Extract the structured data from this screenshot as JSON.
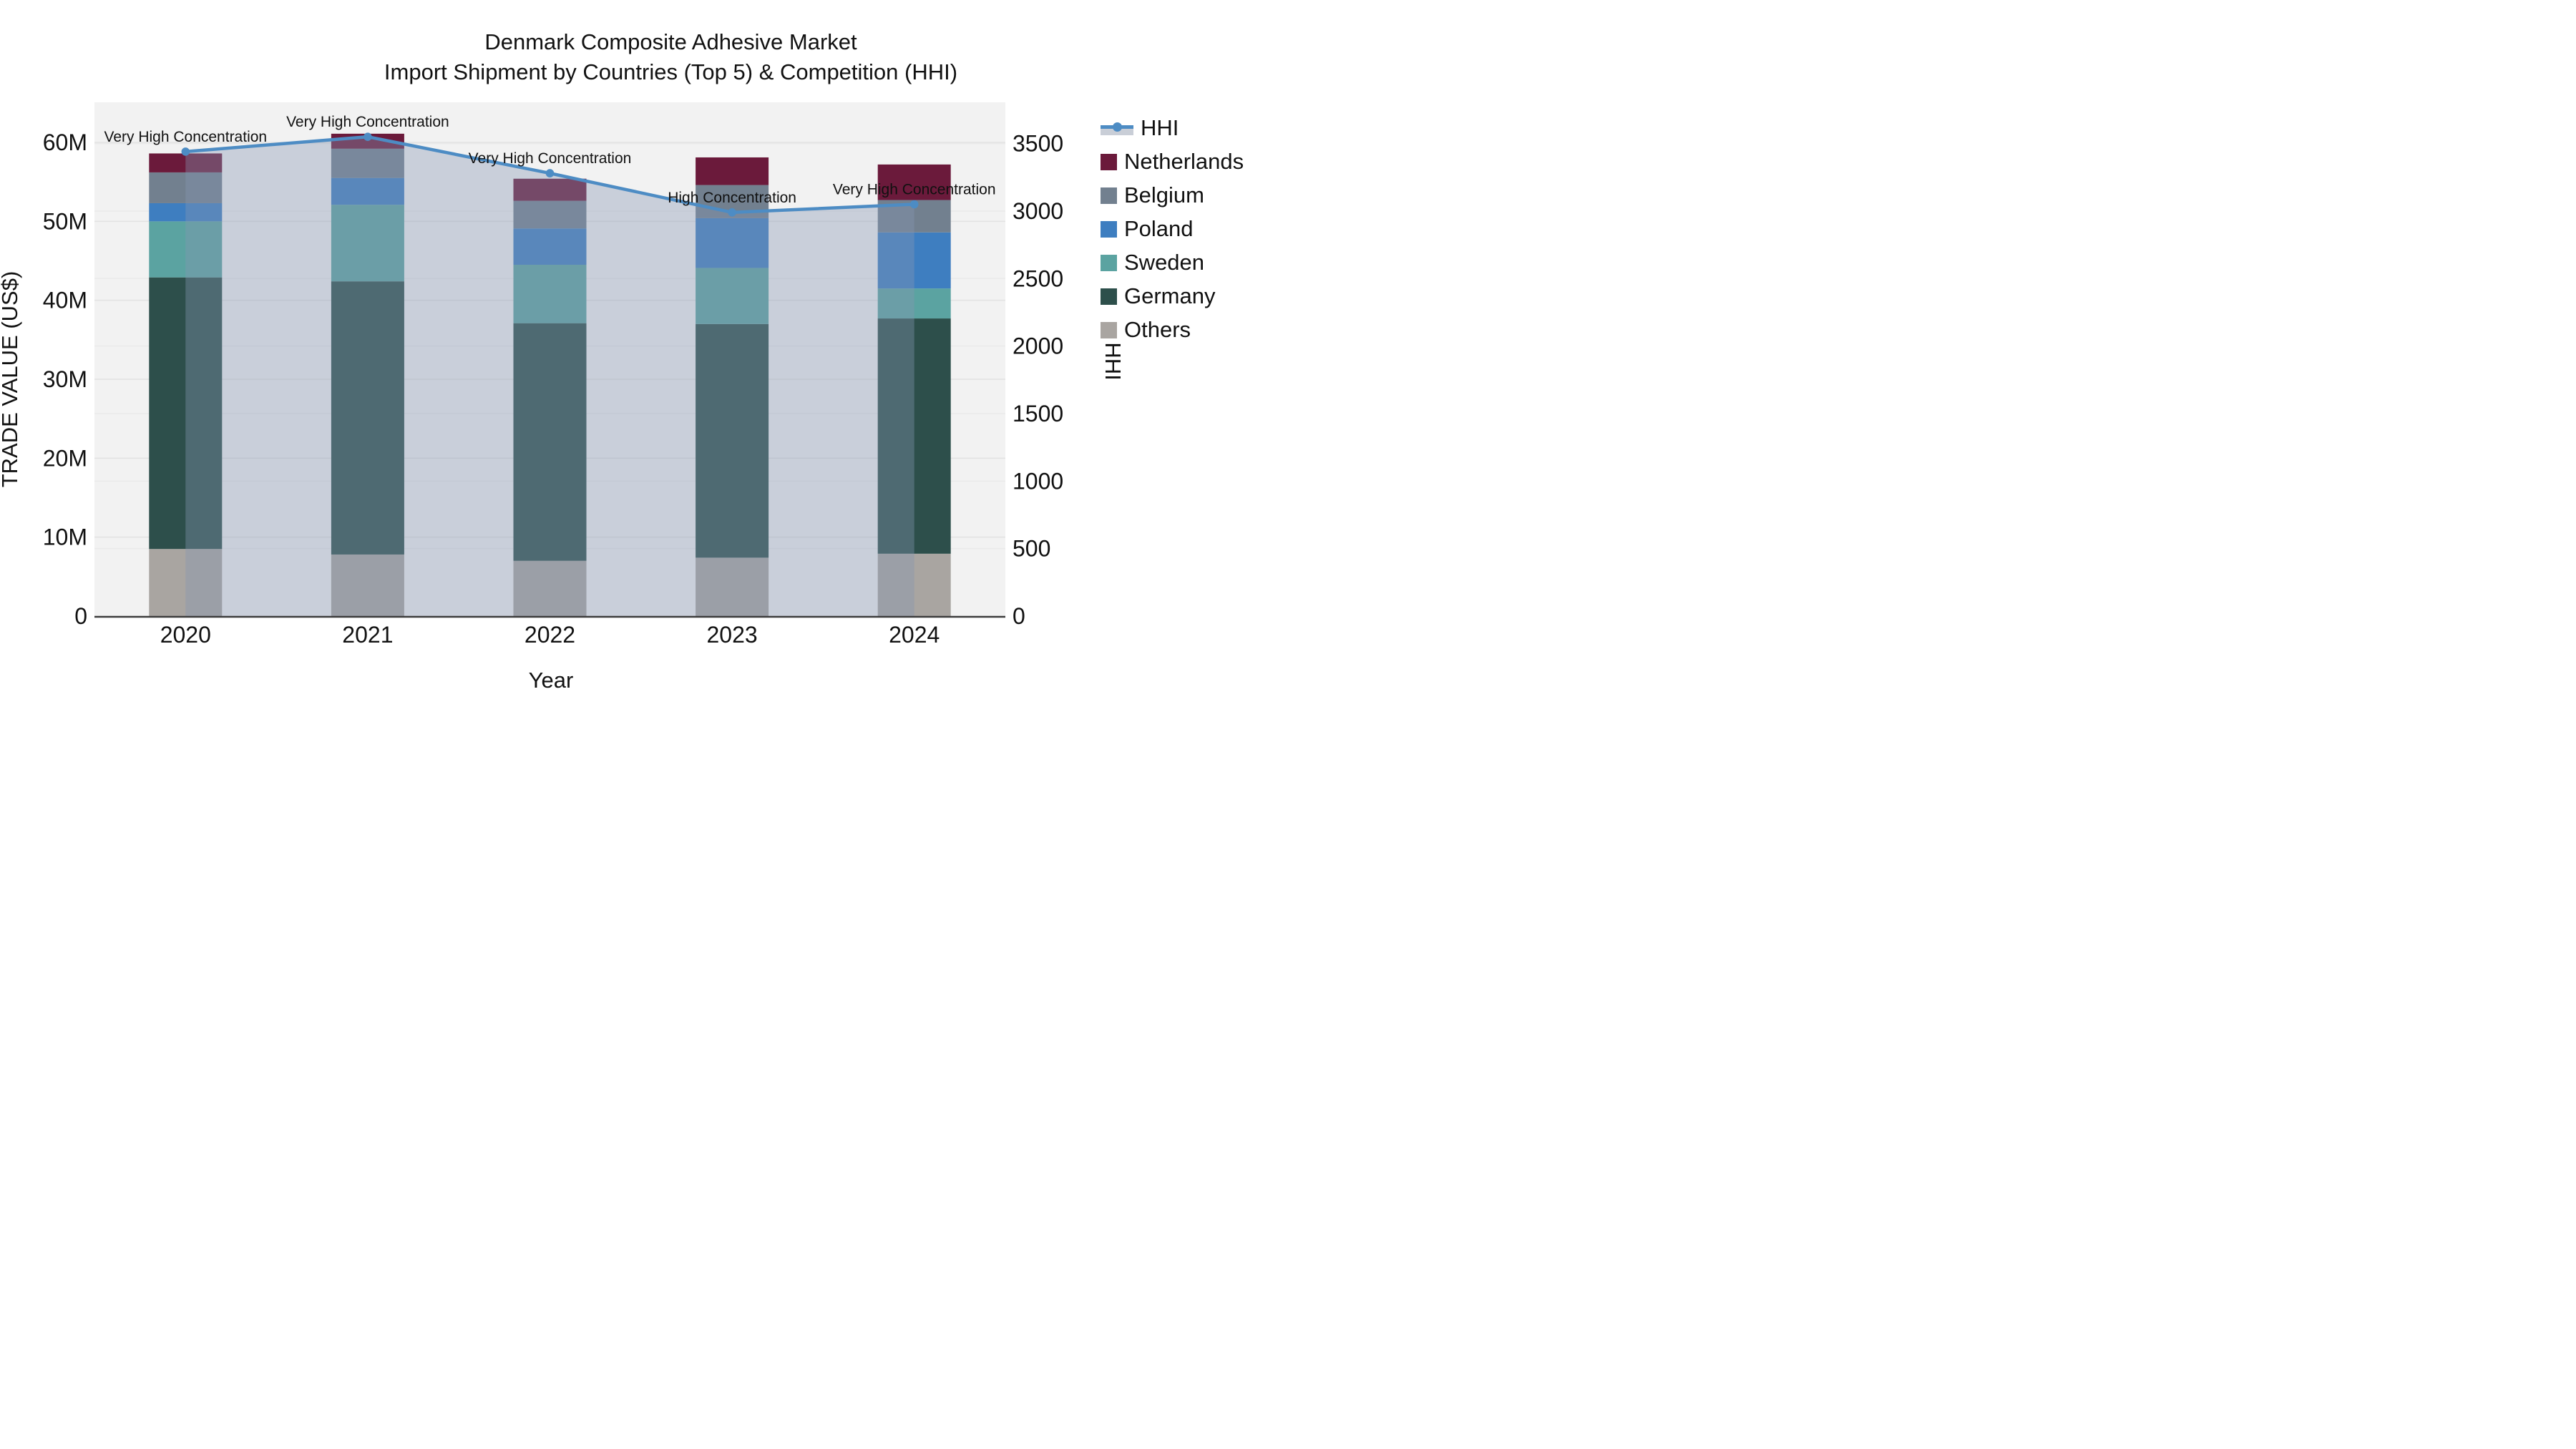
{
  "title": {
    "line1": "Denmark Composite Adhesive Market",
    "line2": "Import Shipment by Countries (Top 5) & Competition (HHI)"
  },
  "legend": {
    "items": [
      {
        "id": "hhi",
        "label": "HHI",
        "type": "line",
        "color": "#4d8cc4"
      },
      {
        "id": "netherlands",
        "label": "Netherlands",
        "type": "bar",
        "color": "#6b1a3b"
      },
      {
        "id": "belgium",
        "label": "Belgium",
        "type": "bar",
        "color": "#72808f"
      },
      {
        "id": "poland",
        "label": "Poland",
        "type": "bar",
        "color": "#3e7ec0"
      },
      {
        "id": "sweden",
        "label": "Sweden",
        "type": "bar",
        "color": "#5ba3a1"
      },
      {
        "id": "germany",
        "label": "Germany",
        "type": "bar",
        "color": "#2d4f4b"
      },
      {
        "id": "others",
        "label": "Others",
        "type": "bar",
        "color": "#a9a5a1"
      }
    ]
  },
  "chart_data": {
    "type": "bar",
    "subtype": "stacked-bars-with-line",
    "x_label": "Year",
    "categories": [
      "2020",
      "2021",
      "2022",
      "2023",
      "2024"
    ],
    "series": [
      {
        "name": "Others",
        "color": "#a9a5a1",
        "values": [
          8.5,
          7.8,
          7.0,
          7.4,
          7.9
        ]
      },
      {
        "name": "Germany",
        "color": "#2d4f4b",
        "values": [
          34.4,
          34.6,
          30.1,
          29.6,
          29.8
        ]
      },
      {
        "name": "Sweden",
        "color": "#5ba3a1",
        "values": [
          7.1,
          9.7,
          7.4,
          7.1,
          3.8
        ]
      },
      {
        "name": "Poland",
        "color": "#3e7ec0",
        "values": [
          2.3,
          3.4,
          4.6,
          6.3,
          7.1
        ]
      },
      {
        "name": "Belgium",
        "color": "#72808f",
        "values": [
          3.9,
          3.7,
          3.5,
          4.2,
          4.1
        ]
      },
      {
        "name": "Netherlands",
        "color": "#6b1a3b",
        "values": [
          2.4,
          1.9,
          2.8,
          3.5,
          4.5
        ]
      }
    ],
    "bar_totals": [
      58.6,
      61.1,
      55.4,
      58.1,
      57.2
    ],
    "line_series": {
      "name": "HHI",
      "color": "#4d8cc4",
      "fill": "tozeroy",
      "fill_color": "rgba(135,150,180,0.38)",
      "axis": "right",
      "values": [
        3440,
        3550,
        3280,
        2990,
        3050
      ]
    },
    "annotations": [
      {
        "year": "2020",
        "text": "Very High Concentration"
      },
      {
        "year": "2021",
        "text": "Very High Concentration"
      },
      {
        "year": "2022",
        "text": "Very High Concentration"
      },
      {
        "year": "2023",
        "text": "High Concentration"
      },
      {
        "year": "2024",
        "text": "Very High Concentration"
      }
    ],
    "y_left": {
      "label": "TRADE VALUE (US$)",
      "range": [
        0,
        64.9
      ],
      "ticks": [
        {
          "v": 0,
          "label": "0"
        },
        {
          "v": 10,
          "label": "10M"
        },
        {
          "v": 20,
          "label": "20M"
        },
        {
          "v": 30,
          "label": "30M"
        },
        {
          "v": 40,
          "label": "40M"
        },
        {
          "v": 50,
          "label": "50M"
        },
        {
          "v": 60,
          "label": "60M"
        }
      ]
    },
    "y_right": {
      "label": "HHI",
      "range": [
        0,
        3790
      ],
      "ticks": [
        {
          "v": 0,
          "label": "0"
        },
        {
          "v": 500,
          "label": "500"
        },
        {
          "v": 1000,
          "label": "1000"
        },
        {
          "v": 1500,
          "label": "1500"
        },
        {
          "v": 2000,
          "label": "2000"
        },
        {
          "v": 2500,
          "label": "2500"
        },
        {
          "v": 3000,
          "label": "3000"
        },
        {
          "v": 3500,
          "label": "3500"
        }
      ]
    },
    "layout": {
      "plot_bg": "#f2f2f2",
      "grid_left_color": "#e2e2e2",
      "grid_right_color": "#eaeaea",
      "axis_line_color": "#3c3c3c",
      "legend_position": "right"
    }
  }
}
